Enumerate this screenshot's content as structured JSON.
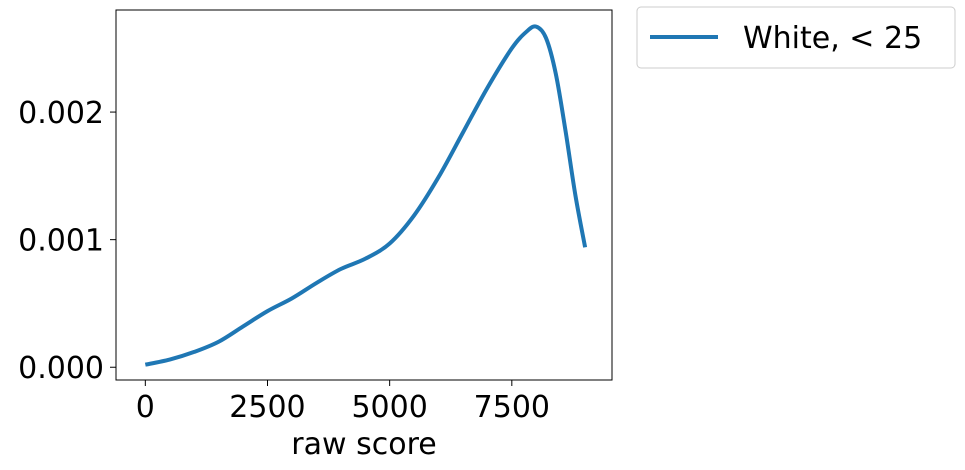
{
  "chart_data": {
    "type": "line",
    "title": "",
    "xlabel": "raw score",
    "ylabel": "",
    "xlim": [
      -600,
      9550
    ],
    "ylim": [
      -0.0001,
      0.0028
    ],
    "xticks": [
      0,
      2500,
      5000,
      7500
    ],
    "xtick_labels": [
      "0",
      "2500",
      "5000",
      "7500"
    ],
    "yticks": [
      0.0,
      0.001,
      0.002
    ],
    "ytick_labels": [
      "0.000",
      "0.001",
      "0.002"
    ],
    "grid": false,
    "legend_placement": "outside-top-right",
    "series": [
      {
        "name": "White, < 25",
        "color": "#1f77b4",
        "x": [
          0,
          500,
          1000,
          1500,
          2000,
          2500,
          3000,
          3500,
          4000,
          4500,
          5000,
          5500,
          6000,
          6500,
          7000,
          7500,
          7800,
          8000,
          8200,
          8400,
          8600,
          8800,
          9000
        ],
        "y": [
          2e-05,
          6e-05,
          0.00012,
          0.0002,
          0.00032,
          0.00044,
          0.00054,
          0.00066,
          0.00077,
          0.00085,
          0.00097,
          0.00119,
          0.00149,
          0.00184,
          0.00219,
          0.0025,
          0.00263,
          0.00267,
          0.00258,
          0.0023,
          0.00185,
          0.00135,
          0.00094
        ]
      }
    ]
  }
}
